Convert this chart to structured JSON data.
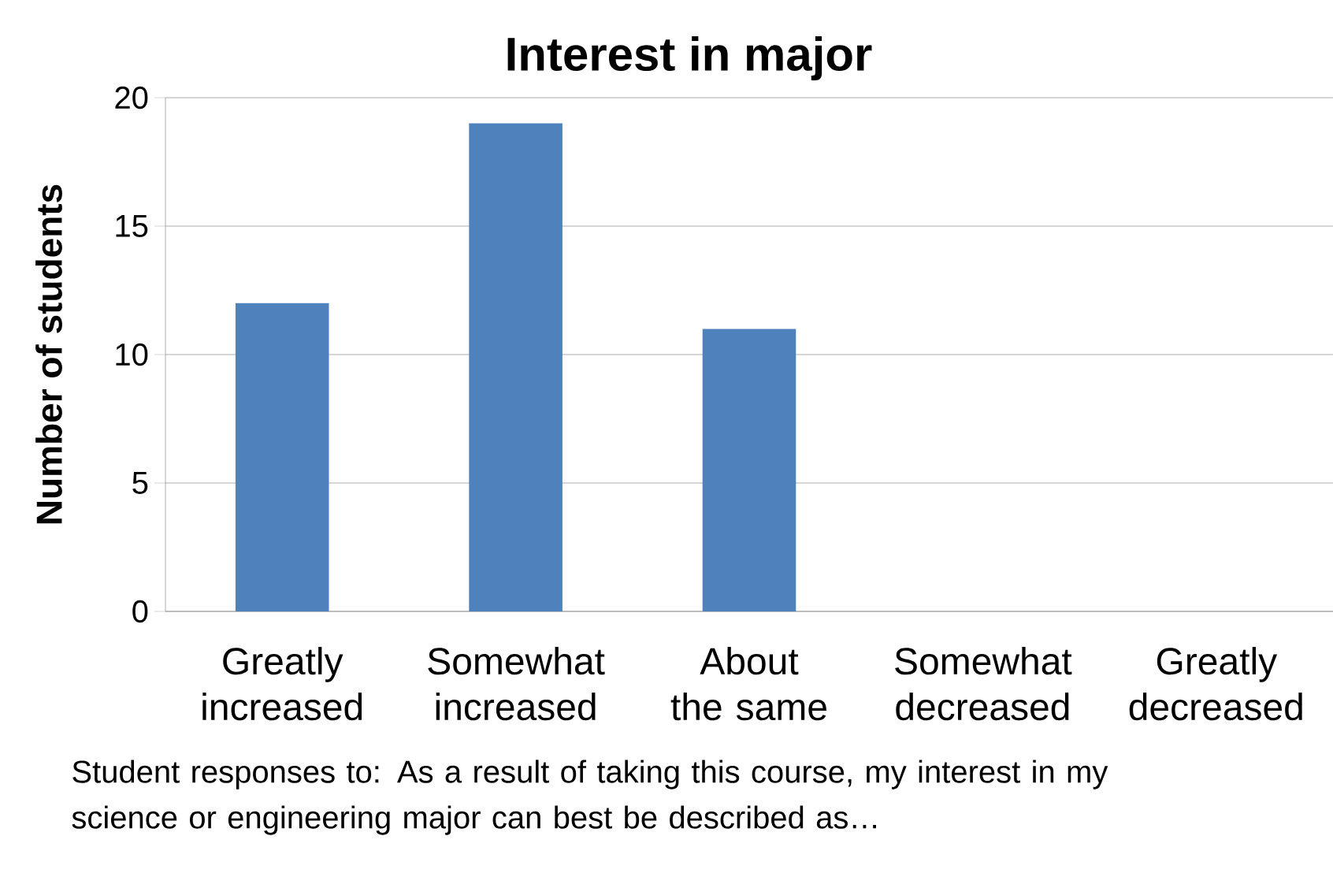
{
  "chart_data": {
    "type": "bar",
    "title": "Interest in major",
    "ylabel": "Number of students",
    "categories": [
      "Greatly increased",
      "Somewhat increased",
      "About the same",
      "Somewhat decreased",
      "Greatly decreased"
    ],
    "values": [
      12,
      19,
      11,
      0,
      0
    ],
    "color": "#4f81bd",
    "ylim": [
      0,
      20
    ],
    "yticks": [
      0,
      5,
      10,
      15,
      20
    ],
    "grid": "y",
    "annotations": [
      "Student responses to:  As a result of taking this course, my interest in my science or engineering major can best be described as…"
    ]
  }
}
